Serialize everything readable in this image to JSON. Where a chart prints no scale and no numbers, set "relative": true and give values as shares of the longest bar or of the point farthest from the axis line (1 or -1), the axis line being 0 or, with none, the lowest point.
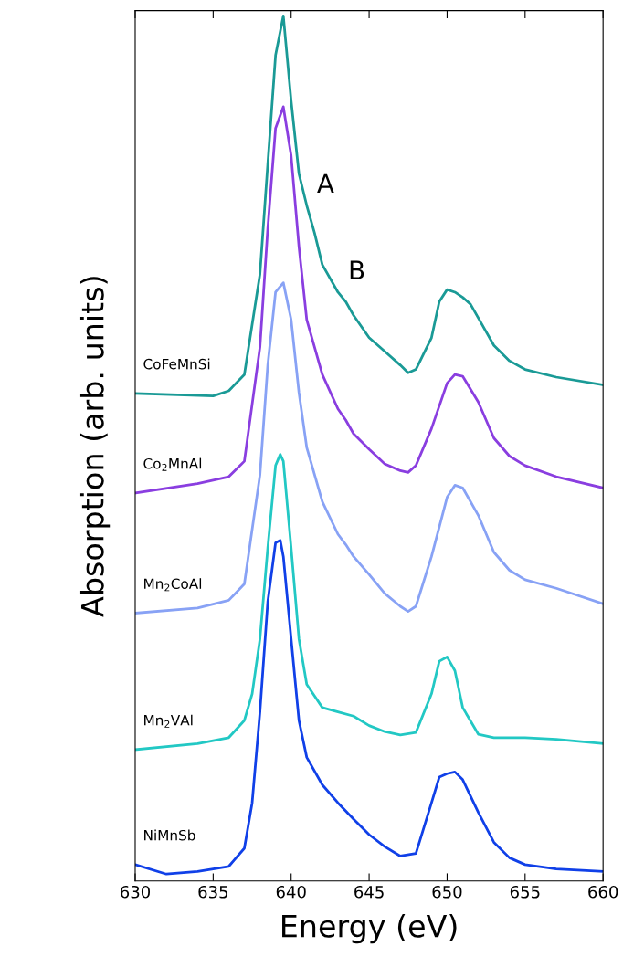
{
  "chart_data": {
    "type": "line",
    "relative": true,
    "xlabel": "Energy (eV)",
    "ylabel": "Absorption (arb. units)",
    "xlim": [
      630,
      660
    ],
    "xticks": [
      630,
      635,
      640,
      645,
      650,
      655,
      660
    ],
    "grid": false,
    "legend": false,
    "marker": "none",
    "line_style": "solid",
    "series": [
      {
        "name": "CoFeMnSi",
        "color": "#1a9a96",
        "x": [
          630,
          635,
          636,
          637,
          638,
          638.5,
          639,
          639.5,
          640,
          640.5,
          641,
          641.5,
          642,
          643,
          643.5,
          644,
          645,
          646,
          647,
          647.5,
          648,
          649,
          649.5,
          650,
          650.5,
          651,
          651.5,
          652,
          653,
          654,
          655,
          657,
          660
        ],
        "values": [
          0.56,
          0.557,
          0.563,
          0.582,
          0.699,
          0.827,
          0.954,
          1.0,
          0.901,
          0.816,
          0.779,
          0.747,
          0.71,
          0.678,
          0.667,
          0.651,
          0.625,
          0.609,
          0.593,
          0.584,
          0.588,
          0.625,
          0.667,
          0.681,
          0.678,
          0.672,
          0.664,
          0.648,
          0.616,
          0.598,
          0.588,
          0.579,
          0.57
        ]
      },
      {
        "name": "Co$_{2}$MnAl",
        "color": "#8a3ee0",
        "x": [
          630,
          634,
          636,
          637,
          638,
          638.5,
          639,
          639.5,
          640,
          640.5,
          641,
          642,
          643,
          643.5,
          644,
          645,
          646,
          647,
          647.5,
          648,
          649,
          650,
          650.5,
          651,
          652,
          653,
          654,
          655,
          657,
          660
        ],
        "values": [
          0.444,
          0.455,
          0.463,
          0.481,
          0.614,
          0.752,
          0.869,
          0.894,
          0.837,
          0.731,
          0.646,
          0.582,
          0.542,
          0.529,
          0.513,
          0.495,
          0.478,
          0.47,
          0.468,
          0.476,
          0.519,
          0.572,
          0.582,
          0.58,
          0.55,
          0.508,
          0.487,
          0.476,
          0.463,
          0.45
        ]
      },
      {
        "name": "Mn$_{2}$CoAl",
        "color": "#88a2f5",
        "x": [
          630,
          634,
          636,
          637,
          638,
          638.5,
          639,
          639.5,
          640,
          640.5,
          641,
          642,
          643,
          643.5,
          644,
          645,
          646,
          647,
          647.5,
          648,
          649,
          650,
          650.5,
          651,
          652,
          653,
          654,
          655,
          657,
          660
        ],
        "values": [
          0.304,
          0.31,
          0.319,
          0.338,
          0.465,
          0.593,
          0.678,
          0.689,
          0.646,
          0.561,
          0.497,
          0.434,
          0.396,
          0.384,
          0.37,
          0.349,
          0.327,
          0.312,
          0.306,
          0.312,
          0.37,
          0.439,
          0.453,
          0.45,
          0.418,
          0.375,
          0.354,
          0.343,
          0.333,
          0.315
        ]
      },
      {
        "name": "Mn$_{2}$VAl",
        "color": "#22c8c4",
        "x": [
          630,
          634,
          636,
          637,
          637.5,
          638,
          638.5,
          639,
          639.3,
          639.5,
          640,
          640.5,
          641,
          642,
          643,
          644,
          645,
          646,
          647,
          648,
          649,
          649.5,
          650,
          650.5,
          651,
          652,
          653,
          655,
          657,
          660
        ],
        "values": [
          0.145,
          0.152,
          0.159,
          0.179,
          0.21,
          0.274,
          0.38,
          0.476,
          0.489,
          0.481,
          0.38,
          0.274,
          0.221,
          0.194,
          0.189,
          0.184,
          0.173,
          0.166,
          0.162,
          0.165,
          0.21,
          0.248,
          0.253,
          0.237,
          0.194,
          0.163,
          0.159,
          0.159,
          0.157,
          0.152
        ]
      },
      {
        "name": "NiMnSb",
        "color": "#1040e8",
        "x": [
          630,
          632,
          634,
          636,
          637,
          637.5,
          638,
          638.5,
          639,
          639.3,
          639.5,
          640,
          640.5,
          641,
          642,
          643,
          644,
          645,
          646,
          647,
          648,
          649,
          649.5,
          650,
          650.5,
          651,
          652,
          653,
          654,
          655,
          657,
          660
        ],
        "values": [
          0.011,
          0.0,
          0.003,
          0.009,
          0.03,
          0.083,
          0.189,
          0.317,
          0.386,
          0.389,
          0.37,
          0.274,
          0.179,
          0.136,
          0.104,
          0.083,
          0.064,
          0.046,
          0.032,
          0.021,
          0.024,
          0.083,
          0.113,
          0.117,
          0.119,
          0.11,
          0.072,
          0.037,
          0.019,
          0.011,
          0.006,
          0.003
        ]
      }
    ],
    "annotations": [
      {
        "text": "A",
        "x": 641,
        "y": 0.779
      },
      {
        "text": "B",
        "x": 643,
        "y": 0.678
      }
    ]
  }
}
